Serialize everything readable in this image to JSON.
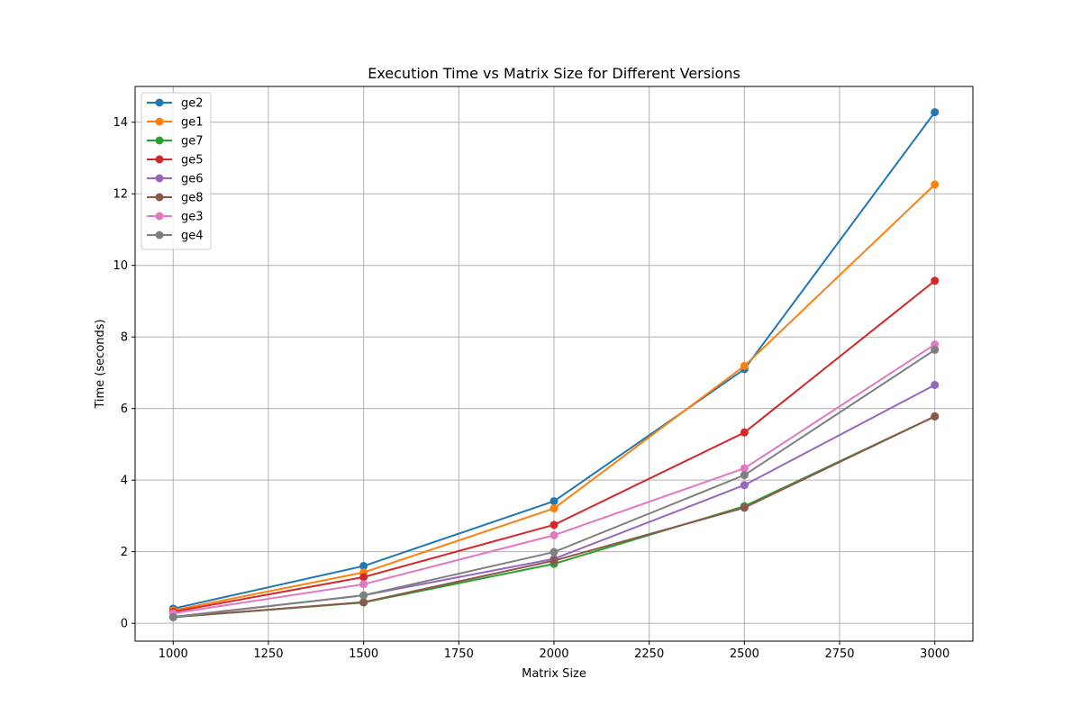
{
  "chart_data": {
    "type": "line",
    "title": "Execution Time vs Matrix Size for Different Versions",
    "xlabel": "Matrix Size",
    "ylabel": "Time (seconds)",
    "x": [
      1000,
      1500,
      2000,
      2500,
      3000
    ],
    "xlim": [
      900,
      3100
    ],
    "ylim": [
      -0.5,
      15
    ],
    "xticks": [
      1000,
      1250,
      1500,
      1750,
      2000,
      2250,
      2500,
      2750,
      3000
    ],
    "yticks": [
      0,
      2,
      4,
      6,
      8,
      10,
      12,
      14
    ],
    "grid": true,
    "legend_position": "upper-left",
    "series": [
      {
        "name": "ge2",
        "color": "#1f77b4",
        "values": [
          0.41,
          1.6,
          3.41,
          7.1,
          14.28
        ]
      },
      {
        "name": "ge1",
        "color": "#ff7f0e",
        "values": [
          0.36,
          1.42,
          3.21,
          7.19,
          12.26
        ]
      },
      {
        "name": "ge7",
        "color": "#2ca02c",
        "values": [
          0.17,
          0.58,
          1.66,
          3.27,
          5.78
        ]
      },
      {
        "name": "ge5",
        "color": "#d62728",
        "values": [
          0.32,
          1.29,
          2.75,
          5.33,
          9.57
        ]
      },
      {
        "name": "ge6",
        "color": "#9467bd",
        "values": [
          0.18,
          0.78,
          1.8,
          3.86,
          6.66
        ]
      },
      {
        "name": "ge8",
        "color": "#8c564b",
        "values": [
          0.17,
          0.59,
          1.75,
          3.23,
          5.78
        ]
      },
      {
        "name": "ge3",
        "color": "#e377c2",
        "values": [
          0.28,
          1.09,
          2.46,
          4.33,
          7.79
        ]
      },
      {
        "name": "ge4",
        "color": "#7f7f7f",
        "values": [
          0.17,
          0.78,
          1.99,
          4.14,
          7.64
        ]
      }
    ]
  }
}
